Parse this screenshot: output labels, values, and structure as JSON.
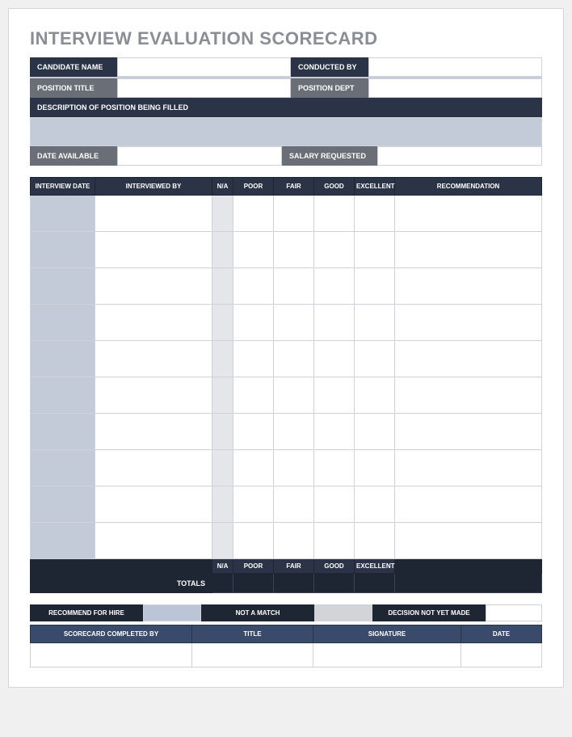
{
  "title": "INTERVIEW EVALUATION SCORECARD",
  "header_fields": {
    "candidate_name": "CANDIDATE NAME",
    "conducted_by": "CONDUCTED BY",
    "position_title": "POSITION TITLE",
    "position_dept": "POSITION DEPT",
    "description": "DESCRIPTION OF POSITION BEING FILLED",
    "date_available": "DATE AVAILABLE",
    "salary_requested": "SALARY REQUESTED"
  },
  "main_table": {
    "headers": {
      "interview_date": "INTERVIEW DATE",
      "interviewed_by": "INTERVIEWED BY",
      "na": "N/A",
      "poor": "POOR",
      "fair": "FAIR",
      "good": "GOOD",
      "excellent": "EXCELLENT",
      "recommendation": "RECOMMENDATION"
    },
    "row_count": 10,
    "totals_label": "TOTALS",
    "col_widths": {
      "date": 80,
      "by": 145,
      "na": 26,
      "score": 50,
      "rec": 134
    }
  },
  "decision": {
    "recommend": "RECOMMEND FOR HIRE",
    "not_match": "NOT A MATCH",
    "not_yet": "DECISION NOT YET MADE"
  },
  "signoff": {
    "completed_by": "SCORECARD COMPLETED BY",
    "title": "TITLE",
    "signature": "SIGNATURE",
    "date": "DATE"
  },
  "colors": {
    "dark_navy": "#2b3447",
    "darker_navy": "#1f2633",
    "mid_blue": "#3a4a6b",
    "light_blue_gray": "#c3cbd9",
    "light_gray": "#e4e6ea",
    "label_gray": "#6a6f77",
    "title_gray": "#8a8e94",
    "border_gray": "#cfd2d8",
    "page_bg": "#ffffff"
  }
}
